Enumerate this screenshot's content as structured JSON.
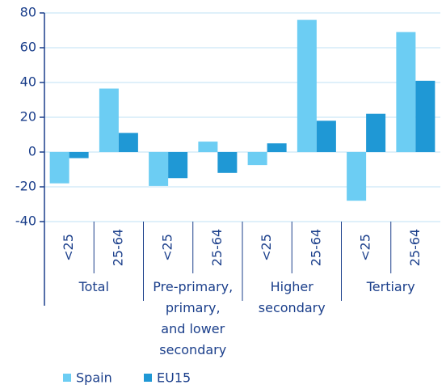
{
  "chart_data": {
    "type": "bar",
    "categories": [
      "<25",
      "25-64",
      "<25",
      "25-64",
      "<25",
      "25-64",
      "<25",
      "25-64"
    ],
    "groups": [
      "Total",
      "Pre-primary,\nprimary,\nand lower\nsecondary",
      "Higher\nsecondary",
      "Tertiary"
    ],
    "series": [
      {
        "name": "Spain",
        "color": "#6ccdf3",
        "values": [
          -18,
          36.5,
          -19.5,
          6,
          -7.5,
          76,
          -28,
          69
        ]
      },
      {
        "name": "EU15",
        "color": "#1f98d5",
        "values": [
          -3.5,
          11,
          -15,
          -12,
          5,
          18,
          22,
          41
        ]
      }
    ],
    "ylim": [
      -40,
      80
    ],
    "yticks": [
      -40,
      -20,
      0,
      20,
      40,
      60,
      80
    ],
    "grid": true,
    "legend": "bottom"
  }
}
